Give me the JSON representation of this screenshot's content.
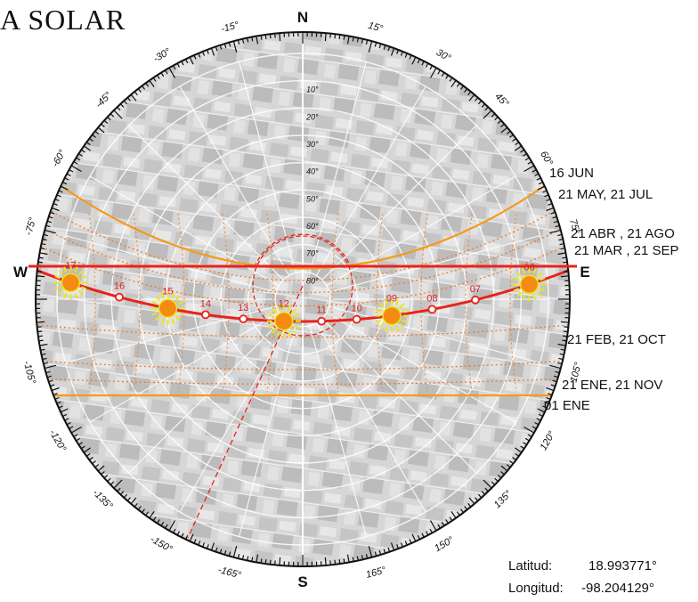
{
  "title": "A SOLAR",
  "cardinals": {
    "north": "N",
    "south": "S",
    "east": "E",
    "west": "W"
  },
  "azimuth_labels": [
    "-15°",
    "-30°",
    "-45°",
    "-60°",
    "-75°",
    "-105°",
    "-120°",
    "-135°",
    "-150°",
    "-165°",
    "15°",
    "30°",
    "45°",
    "60°",
    "75°",
    "105°",
    "120°",
    "135°",
    "150°",
    "165°"
  ],
  "altitude_labels": [
    "10°",
    "20°",
    "30°",
    "40°",
    "50°",
    "60°",
    "70°",
    "80°"
  ],
  "hour_labels": [
    "17",
    "16",
    "15",
    "14",
    "13",
    "12",
    "11",
    "10",
    "09",
    "08",
    "07",
    "06"
  ],
  "sun_hours": [
    "17",
    "15",
    "12",
    "09",
    "06"
  ],
  "date_labels": [
    "16 JUN",
    "21 MAY, 21 JUL",
    "21 ABR , 21 AGO",
    "21 MAR , 21 SEP",
    "21 FEB, 21 OCT",
    "21 ENE, 21 NOV",
    "01 ENE"
  ],
  "location": {
    "lat_label": "Latitud:",
    "lat_value": "18.993771°",
    "lon_label": "Longitud:",
    "lon_value": "-98.204129°"
  },
  "colors": {
    "path": "#e8231a",
    "solstice": "#f59a1c",
    "dotted": "#f07a26",
    "sun": "#f58b12",
    "sun_rays": "#e9e81a",
    "hour_text": "#e01e1e",
    "ring": "#111111",
    "grid": "#ffffff",
    "photo": "#c9c9c9"
  }
}
